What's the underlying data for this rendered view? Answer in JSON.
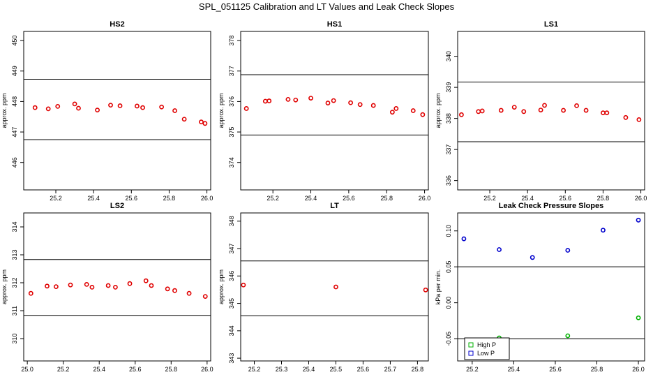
{
  "page_title": "SPL_051125  Calibration and LT Values and Leak Check Slopes",
  "colors": {
    "red_points": "#e00000",
    "blue_points": "#0000cc",
    "green_points": "#00b000",
    "lines": "#000000"
  },
  "chart_data": [
    {
      "type": "scatter",
      "title": "HS2",
      "xlabel": "",
      "ylabel": "approx. ppm",
      "xlim": [
        25.03,
        26.02
      ],
      "ylim": [
        445.1,
        450.3
      ],
      "xticks": [
        25.2,
        25.4,
        25.6,
        25.8,
        26.0
      ],
      "yticks": [
        446,
        447,
        448,
        449,
        450
      ],
      "hlines": [
        446.75,
        448.73
      ],
      "series": [
        {
          "color": "red",
          "x": [
            25.09,
            25.16,
            25.21,
            25.3,
            25.32,
            25.42,
            25.49,
            25.54,
            25.63,
            25.66,
            25.76,
            25.83,
            25.88,
            25.97,
            25.99
          ],
          "y": [
            447.8,
            447.76,
            447.84,
            447.92,
            447.78,
            447.72,
            447.88,
            447.86,
            447.85,
            447.8,
            447.82,
            447.7,
            447.42,
            447.33,
            447.28
          ]
        }
      ]
    },
    {
      "type": "scatter",
      "title": "HS1",
      "xlabel": "",
      "ylabel": "approx. ppm",
      "xlim": [
        25.03,
        26.02
      ],
      "ylim": [
        373.1,
        378.3
      ],
      "xticks": [
        25.2,
        25.4,
        25.6,
        25.8,
        26.0
      ],
      "yticks": [
        374,
        375,
        376,
        377,
        378
      ],
      "hlines": [
        374.9,
        376.88
      ],
      "series": [
        {
          "color": "red",
          "x": [
            25.06,
            25.16,
            25.18,
            25.28,
            25.32,
            25.4,
            25.49,
            25.52,
            25.61,
            25.66,
            25.73,
            25.83,
            25.85,
            25.94,
            25.99
          ],
          "y": [
            375.77,
            376.01,
            376.02,
            376.07,
            376.05,
            376.11,
            375.95,
            376.03,
            375.96,
            375.9,
            375.87,
            375.65,
            375.77,
            375.7,
            375.57
          ]
        }
      ]
    },
    {
      "type": "scatter",
      "title": "LS1",
      "xlabel": "",
      "ylabel": "approx. ppm",
      "xlim": [
        25.03,
        26.02
      ],
      "ylim": [
        335.7,
        340.8
      ],
      "xticks": [
        25.2,
        25.4,
        25.6,
        25.8,
        26.0
      ],
      "yticks": [
        336,
        337,
        338,
        339,
        340
      ],
      "hlines": [
        337.25,
        339.17
      ],
      "series": [
        {
          "color": "red",
          "x": [
            25.05,
            25.14,
            25.16,
            25.26,
            25.33,
            25.38,
            25.47,
            25.49,
            25.59,
            25.66,
            25.71,
            25.8,
            25.82,
            25.92,
            25.99
          ],
          "y": [
            338.12,
            338.22,
            338.24,
            338.26,
            338.36,
            338.22,
            338.27,
            338.42,
            338.26,
            338.41,
            338.26,
            338.18,
            338.18,
            338.03,
            337.96
          ]
        }
      ]
    },
    {
      "type": "scatter",
      "title": "LS2",
      "xlabel": "",
      "ylabel": "approx. ppm",
      "xlim": [
        24.98,
        26.02
      ],
      "ylim": [
        309.2,
        314.5
      ],
      "xticks": [
        25.0,
        25.2,
        25.4,
        25.6,
        25.8,
        26.0
      ],
      "yticks": [
        310,
        311,
        312,
        313,
        314
      ],
      "hlines": [
        310.83,
        312.83
      ],
      "series": [
        {
          "color": "red",
          "x": [
            25.02,
            25.11,
            25.16,
            25.24,
            25.33,
            25.36,
            25.45,
            25.49,
            25.57,
            25.66,
            25.69,
            25.78,
            25.82,
            25.9,
            25.99
          ],
          "y": [
            311.62,
            311.88,
            311.86,
            311.92,
            311.94,
            311.84,
            311.9,
            311.84,
            311.97,
            312.07,
            311.9,
            311.78,
            311.72,
            311.62,
            311.51
          ]
        }
      ]
    },
    {
      "type": "scatter",
      "title": "LT",
      "xlabel": "",
      "ylabel": "approx. ppm",
      "xlim": [
        25.15,
        25.84
      ],
      "ylim": [
        342.9,
        348.3
      ],
      "xticks": [
        25.2,
        25.3,
        25.4,
        25.5,
        25.6,
        25.7,
        25.8
      ],
      "yticks": [
        343,
        344,
        345,
        346,
        347,
        348
      ],
      "hlines": [
        344.55,
        346.55
      ],
      "series": [
        {
          "color": "red",
          "x": [
            25.16,
            25.5,
            25.83
          ],
          "y": [
            345.67,
            345.6,
            345.49
          ]
        }
      ]
    },
    {
      "type": "scatter",
      "title": "Leak Check Pressure Slopes",
      "xlabel": "",
      "ylabel": "kPa per min.",
      "xlim": [
        25.13,
        26.03
      ],
      "ylim": [
        -0.081,
        0.125
      ],
      "xticks": [
        25.2,
        25.4,
        25.6,
        25.8,
        26.0
      ],
      "yticks": [
        -0.05,
        0.0,
        0.05,
        0.1
      ],
      "ytick_labels": [
        "-0.05",
        "0.00",
        "0.05",
        "0.10"
      ],
      "hlines": [
        -0.05,
        0.05
      ],
      "legend": {
        "placement": "bottom-left",
        "entries": [
          "High P",
          "Low P"
        ]
      },
      "series": [
        {
          "name": "High P",
          "color": "green",
          "x": [
            25.33,
            25.66,
            26.0
          ],
          "y": [
            -0.049,
            -0.046,
            -0.021
          ]
        },
        {
          "name": "Low P",
          "color": "blue",
          "x": [
            25.16,
            25.33,
            25.49,
            25.66,
            25.83,
            26.0
          ],
          "y": [
            0.089,
            0.074,
            0.063,
            0.073,
            0.101,
            0.115
          ]
        }
      ]
    }
  ]
}
